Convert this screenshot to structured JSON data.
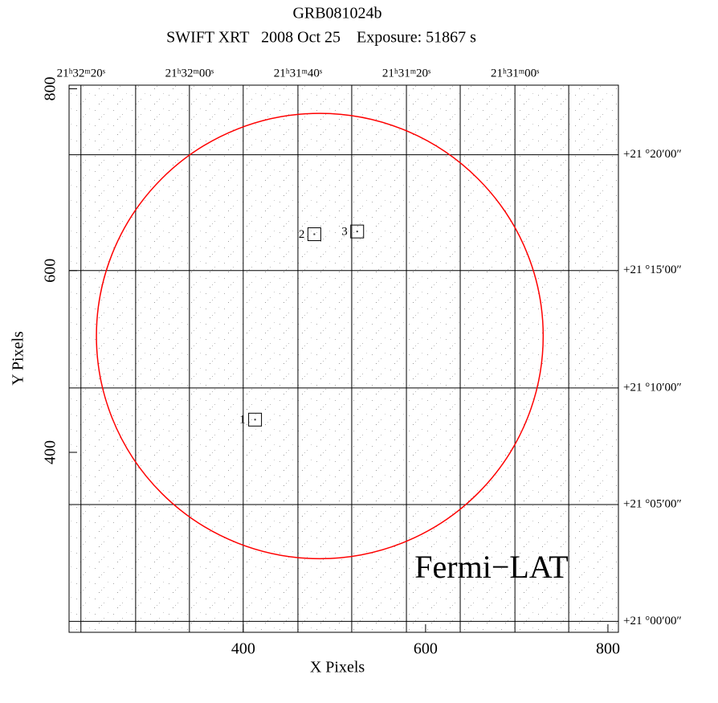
{
  "chart_data": {
    "type": "image",
    "title": "GRB081024b",
    "subtitle": "SWIFT XRT   2008 Oct 25    Exposure: 51867 s",
    "x_label": "X Pixels",
    "y_label": "Y Pixels",
    "xlim": [
      209,
      811.5
    ],
    "ylim": [
      202,
      804
    ],
    "xticks": [
      400,
      600,
      800
    ],
    "yticks": [
      400,
      600,
      800
    ],
    "ra_grid": [
      {
        "value": 222,
        "label": "21ʰ32ᵐ20ˢ"
      },
      282,
      {
        "value": 341,
        "label": "21ʰ32ᵐ00ˢ"
      },
      400,
      {
        "value": 460,
        "label": "21ʰ31ᵐ40ˢ"
      },
      519,
      {
        "value": 579,
        "label": "21ʰ31ᵐ20ˢ"
      },
      638,
      {
        "value": 698,
        "label": "21ʰ31ᵐ00ˢ"
      },
      757
    ],
    "dec_grid": [
      {
        "value": 727.4,
        "label": "+21 °20ʹ00ʺ"
      },
      {
        "value": 600,
        "label": "+21 °15ʹ00ʺ"
      },
      {
        "value": 470.8,
        "label": "+21 °10ʹ00ʺ"
      },
      {
        "value": 342.5,
        "label": "+21 °05ʹ00ʺ"
      },
      {
        "value": 214,
        "label": "+21 °00ʹ00ʺ"
      }
    ],
    "region": {
      "name": "Fermi−LAT",
      "color": "#ff0000",
      "x": 484,
      "y": 528,
      "r": 245
    },
    "sources": [
      {
        "name": "1",
        "x": 413,
        "y": 436
      },
      {
        "name": "2",
        "x": 478,
        "y": 640
      },
      {
        "name": "3",
        "x": 525,
        "y": 643
      }
    ]
  }
}
